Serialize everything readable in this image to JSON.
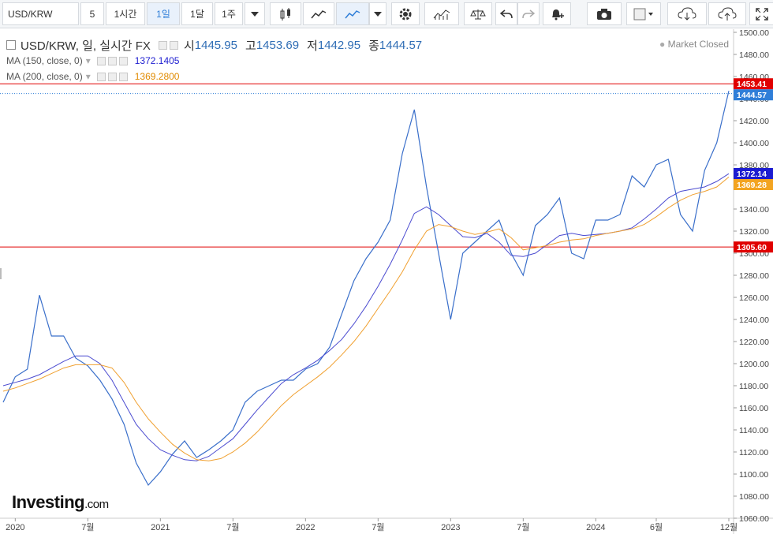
{
  "toolbar": {
    "symbol": "USD/KRW",
    "interval_items": [
      "5",
      "1시간",
      "1일",
      "1달",
      "1주"
    ],
    "active_interval": "1일"
  },
  "legend": {
    "title": "USD/KRW, 일, 실시간 FX",
    "open_label": "시",
    "open_value": "1445.95",
    "high_label": "고",
    "high_value": "1453.69",
    "low_label": "저",
    "low_value": "1442.95",
    "close_label": "종",
    "close_value": "1444.57",
    "ma150_label": "MA (150, close, 0)",
    "ma150_value": "1372.1405",
    "ma200_label": "MA (200, close, 0)",
    "ma200_value": "1369.2800"
  },
  "status": "Market Closed",
  "logo_main": "Investing",
  "logo_suffix": ".com",
  "colors": {
    "price": "#3a6fca",
    "ma150": "#4b4bd0",
    "ma200": "#f0a030",
    "hline": "#e00000",
    "last_price_bg": "#2f7ed8",
    "ma150_bg": "#1c1cd0",
    "ma200_bg": "#f3a421"
  },
  "chart_data": {
    "type": "line",
    "ylim": [
      1060,
      1500
    ],
    "y_ticks": [
      "1500.00",
      "1480.00",
      "1460.00",
      "1440.00",
      "1420.00",
      "1400.00",
      "1380.00",
      "1360.00",
      "1340.00",
      "1320.00",
      "1300.00",
      "1280.00",
      "1260.00",
      "1240.00",
      "1220.00",
      "1200.00",
      "1180.00",
      "1160.00",
      "1140.00",
      "1120.00",
      "1100.00",
      "1080.00",
      "1060.00"
    ],
    "x_tick_labels": [
      "2020",
      "7월",
      "2021",
      "7월",
      "2022",
      "7월",
      "2023",
      "7월",
      "2024",
      "6월",
      "12월"
    ],
    "x_tick_dates": [
      "2020-01",
      "2020-07",
      "2021-01",
      "2021-07",
      "2022-01",
      "2022-07",
      "2023-01",
      "2023-07",
      "2024-01",
      "2024-06",
      "2024-12"
    ],
    "x_range": [
      "2019-12",
      "2024-12"
    ],
    "series": [
      {
        "name": "USD/KRW",
        "x": [
          "2019-12",
          "2020-01",
          "2020-02",
          "2020-03",
          "2020-04",
          "2020-05",
          "2020-06",
          "2020-07",
          "2020-08",
          "2020-09",
          "2020-10",
          "2020-11",
          "2020-12",
          "2021-01",
          "2021-02",
          "2021-03",
          "2021-04",
          "2021-05",
          "2021-06",
          "2021-07",
          "2021-08",
          "2021-09",
          "2021-10",
          "2021-11",
          "2021-12",
          "2022-01",
          "2022-02",
          "2022-03",
          "2022-04",
          "2022-05",
          "2022-06",
          "2022-07",
          "2022-08",
          "2022-09",
          "2022-10",
          "2022-11",
          "2022-12",
          "2023-01",
          "2023-02",
          "2023-03",
          "2023-04",
          "2023-05",
          "2023-06",
          "2023-07",
          "2023-08",
          "2023-09",
          "2023-10",
          "2023-11",
          "2023-12",
          "2024-01",
          "2024-02",
          "2024-03",
          "2024-04",
          "2024-05",
          "2024-06",
          "2024-07",
          "2024-08",
          "2024-09",
          "2024-10",
          "2024-11",
          "2024-12"
        ],
        "values": [
          1165,
          1188,
          1195,
          1262,
          1225,
          1225,
          1205,
          1198,
          1185,
          1168,
          1145,
          1110,
          1090,
          1102,
          1118,
          1130,
          1115,
          1122,
          1130,
          1140,
          1165,
          1175,
          1180,
          1185,
          1185,
          1195,
          1200,
          1215,
          1245,
          1275,
          1295,
          1310,
          1330,
          1390,
          1430,
          1360,
          1300,
          1240,
          1300,
          1310,
          1320,
          1330,
          1300,
          1280,
          1325,
          1335,
          1350,
          1300,
          1295,
          1330,
          1330,
          1335,
          1370,
          1360,
          1380,
          1385,
          1335,
          1320,
          1375,
          1400,
          1447
        ]
      },
      {
        "name": "MA (150, close, 0)",
        "x": [
          "2019-12",
          "2020-01",
          "2020-02",
          "2020-03",
          "2020-04",
          "2020-05",
          "2020-06",
          "2020-07",
          "2020-08",
          "2020-09",
          "2020-10",
          "2020-11",
          "2020-12",
          "2021-01",
          "2021-02",
          "2021-03",
          "2021-04",
          "2021-05",
          "2021-06",
          "2021-07",
          "2021-08",
          "2021-09",
          "2021-10",
          "2021-11",
          "2021-12",
          "2022-01",
          "2022-02",
          "2022-03",
          "2022-04",
          "2022-05",
          "2022-06",
          "2022-07",
          "2022-08",
          "2022-09",
          "2022-10",
          "2022-11",
          "2022-12",
          "2023-01",
          "2023-02",
          "2023-03",
          "2023-04",
          "2023-05",
          "2023-06",
          "2023-07",
          "2023-08",
          "2023-09",
          "2023-10",
          "2023-11",
          "2023-12",
          "2024-01",
          "2024-02",
          "2024-03",
          "2024-04",
          "2024-05",
          "2024-06",
          "2024-07",
          "2024-08",
          "2024-09",
          "2024-10",
          "2024-11",
          "2024-12"
        ],
        "values": [
          1180,
          1183,
          1186,
          1190,
          1196,
          1202,
          1207,
          1207,
          1200,
          1185,
          1165,
          1145,
          1132,
          1122,
          1117,
          1113,
          1112,
          1116,
          1124,
          1132,
          1145,
          1158,
          1170,
          1182,
          1190,
          1196,
          1203,
          1212,
          1222,
          1236,
          1252,
          1270,
          1290,
          1312,
          1336,
          1342,
          1335,
          1325,
          1315,
          1314,
          1318,
          1310,
          1298,
          1297,
          1300,
          1308,
          1316,
          1318,
          1316,
          1317,
          1318,
          1320,
          1323,
          1331,
          1340,
          1350,
          1356,
          1358,
          1360,
          1365,
          1372
        ]
      },
      {
        "name": "MA (200, close, 0)",
        "x": [
          "2019-12",
          "2020-01",
          "2020-02",
          "2020-03",
          "2020-04",
          "2020-05",
          "2020-06",
          "2020-07",
          "2020-08",
          "2020-09",
          "2020-10",
          "2020-11",
          "2020-12",
          "2021-01",
          "2021-02",
          "2021-03",
          "2021-04",
          "2021-05",
          "2021-06",
          "2021-07",
          "2021-08",
          "2021-09",
          "2021-10",
          "2021-11",
          "2021-12",
          "2022-01",
          "2022-02",
          "2022-03",
          "2022-04",
          "2022-05",
          "2022-06",
          "2022-07",
          "2022-08",
          "2022-09",
          "2022-10",
          "2022-11",
          "2022-12",
          "2023-01",
          "2023-02",
          "2023-03",
          "2023-04",
          "2023-05",
          "2023-06",
          "2023-07",
          "2023-08",
          "2023-09",
          "2023-10",
          "2023-11",
          "2023-12",
          "2024-01",
          "2024-02",
          "2024-03",
          "2024-04",
          "2024-05",
          "2024-06",
          "2024-07",
          "2024-08",
          "2024-09",
          "2024-10",
          "2024-11",
          "2024-12"
        ],
        "values": [
          1175,
          1178,
          1182,
          1186,
          1191,
          1196,
          1199,
          1199,
          1199,
          1196,
          1183,
          1165,
          1150,
          1138,
          1127,
          1119,
          1113,
          1112,
          1114,
          1120,
          1128,
          1138,
          1150,
          1162,
          1172,
          1180,
          1188,
          1197,
          1208,
          1220,
          1234,
          1250,
          1266,
          1283,
          1303,
          1320,
          1326,
          1324,
          1320,
          1317,
          1319,
          1322,
          1314,
          1303,
          1305,
          1307,
          1310,
          1312,
          1313,
          1316,
          1318,
          1320,
          1322,
          1326,
          1333,
          1341,
          1348,
          1353,
          1356,
          1360,
          1369
        ]
      }
    ],
    "horizontal_lines": [
      {
        "label": "1453.41",
        "value": 1453.41
      },
      {
        "label": "1305.60",
        "value": 1305.6
      }
    ],
    "price_markers": [
      {
        "label": "1444.57",
        "value": 1444.57,
        "kind": "last"
      },
      {
        "label": "1372.14",
        "value": 1372.14,
        "kind": "ma150"
      },
      {
        "label": "1369.28",
        "value": 1369.28,
        "kind": "ma200"
      }
    ]
  }
}
